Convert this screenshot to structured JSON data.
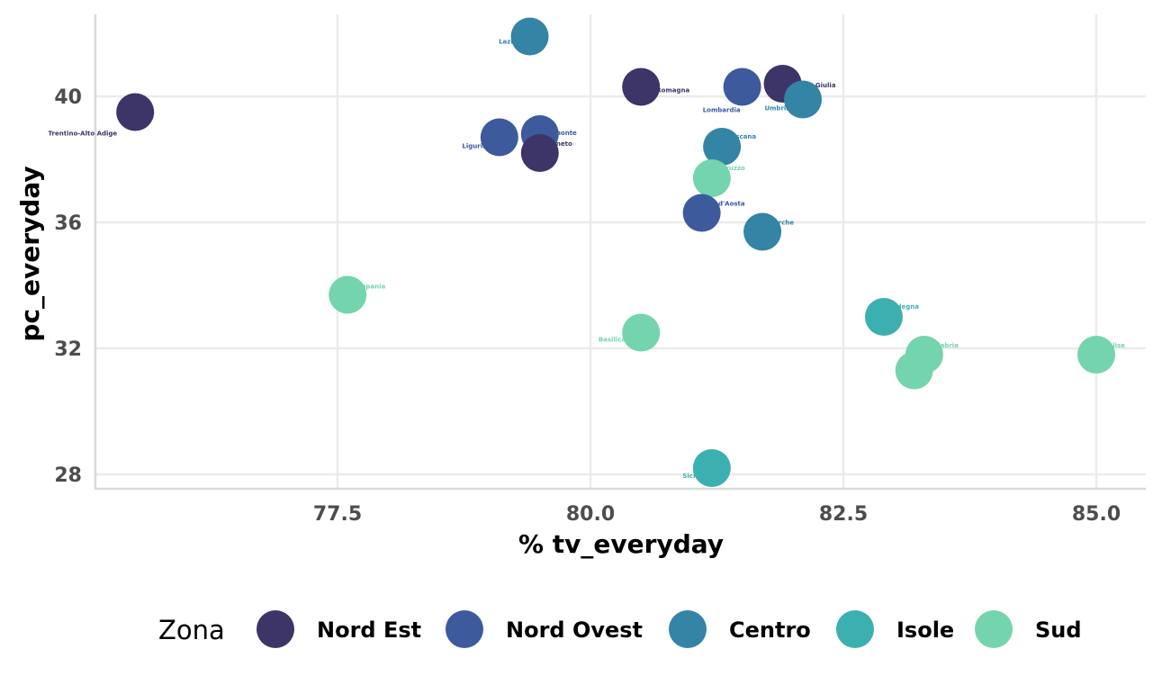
{
  "chart_data": {
    "type": "scatter",
    "xlabel": "% tv_everyday",
    "ylabel": "pc_everyday",
    "xlim": [
      75.3,
      85.45
    ],
    "ylim": [
      27.5,
      42.6
    ],
    "xticks": [
      77.5,
      80.0,
      82.5,
      85.0
    ],
    "xtick_labels": [
      "77.5",
      "80.0",
      "82.5",
      "85.0"
    ],
    "yticks": [
      28,
      32,
      36,
      40
    ],
    "ytick_labels": [
      "28",
      "32",
      "36",
      "40"
    ],
    "grid": true,
    "legend": {
      "title": "Zona",
      "position": "bottom",
      "entries": [
        {
          "name": "Nord Est",
          "color": "#3d3468"
        },
        {
          "name": "Nord Ovest",
          "color": "#3c5a9c"
        },
        {
          "name": "Centro",
          "color": "#3484a6"
        },
        {
          "name": "Isole",
          "color": "#3cb0b0"
        },
        {
          "name": "Sud",
          "color": "#74d4ae"
        }
      ]
    },
    "points": [
      {
        "label": "Trentino-Alto Adige",
        "zona": "Nord Est",
        "x": 75.5,
        "y": 39.5,
        "ha": "right",
        "dx": -20,
        "dy": 26
      },
      {
        "label": "Lazio",
        "zona": "Centro",
        "x": 79.4,
        "y": 41.9,
        "ha": "right",
        "dx": -14,
        "dy": 8
      },
      {
        "label": "Emilia-Romagna",
        "zona": "Nord Est",
        "x": 80.5,
        "y": 40.3,
        "ha": "right",
        "dx": 54,
        "dy": 6
      },
      {
        "label": "Lombardia",
        "zona": "Nord Ovest",
        "x": 81.5,
        "y": 40.3,
        "ha": "right",
        "dx": -2,
        "dy": 28
      },
      {
        "label": "Friuli-Venezia Giulia",
        "zona": "Nord Est",
        "x": 81.9,
        "y": 40.4,
        "ha": "right",
        "dx": 59,
        "dy": 4
      },
      {
        "label": "Umbria",
        "zona": "Centro",
        "x": 82.1,
        "y": 39.9,
        "ha": "right",
        "dx": -14,
        "dy": 12
      },
      {
        "label": "Piemonte",
        "zona": "Nord Ovest",
        "x": 79.5,
        "y": 38.8,
        "ha": "right",
        "dx": 41,
        "dy": 1
      },
      {
        "label": "Liguria",
        "zona": "Nord Ovest",
        "x": 79.1,
        "y": 38.7,
        "ha": "right",
        "dx": -14,
        "dy": 12
      },
      {
        "label": "Veneto",
        "zona": "Nord Est",
        "x": 79.5,
        "y": 38.2,
        "ha": "right",
        "dx": 36,
        "dy": -8
      },
      {
        "label": "Toscana",
        "zona": "Centro",
        "x": 81.3,
        "y": 38.4,
        "ha": "right",
        "dx": 38,
        "dy": -9
      },
      {
        "label": "Abruzzo",
        "zona": "Sud",
        "x": 81.2,
        "y": 37.4,
        "ha": "right",
        "dx": 37,
        "dy": -9
      },
      {
        "label": "Valle d'Aosta",
        "zona": "Nord Ovest",
        "x": 81.1,
        "y": 36.3,
        "ha": "right",
        "dx": 48,
        "dy": -8
      },
      {
        "label": "Marche",
        "zona": "Centro",
        "x": 81.7,
        "y": 35.7,
        "ha": "right",
        "dx": 35,
        "dy": -8
      },
      {
        "label": "Campania",
        "zona": "Sud",
        "x": 77.6,
        "y": 33.7,
        "ha": "right",
        "dx": 42,
        "dy": -7
      },
      {
        "label": "Sardegna",
        "zona": "Isole",
        "x": 82.9,
        "y": 33.0,
        "ha": "right",
        "dx": 39,
        "dy": -9
      },
      {
        "label": "Basilicata",
        "zona": "Sud",
        "x": 80.5,
        "y": 32.5,
        "ha": "right",
        "dx": -9,
        "dy": 10
      },
      {
        "label": "Calabria",
        "zona": "Sud",
        "x": 83.3,
        "y": 31.8,
        "ha": "right",
        "dx": 38,
        "dy": -8
      },
      {
        "label": "Puglia",
        "zona": "Sud",
        "x": 83.2,
        "y": 31.3,
        "ha": "right",
        "dx": 14,
        "dy": 3
      },
      {
        "label": "Molise",
        "zona": "Sud",
        "x": 85.0,
        "y": 31.8,
        "ha": "right",
        "dx": 32,
        "dy": -8
      },
      {
        "label": "Sicilia",
        "zona": "Isole",
        "x": 81.2,
        "y": 28.2,
        "ha": "right",
        "dx": -9,
        "dy": 11
      }
    ]
  }
}
